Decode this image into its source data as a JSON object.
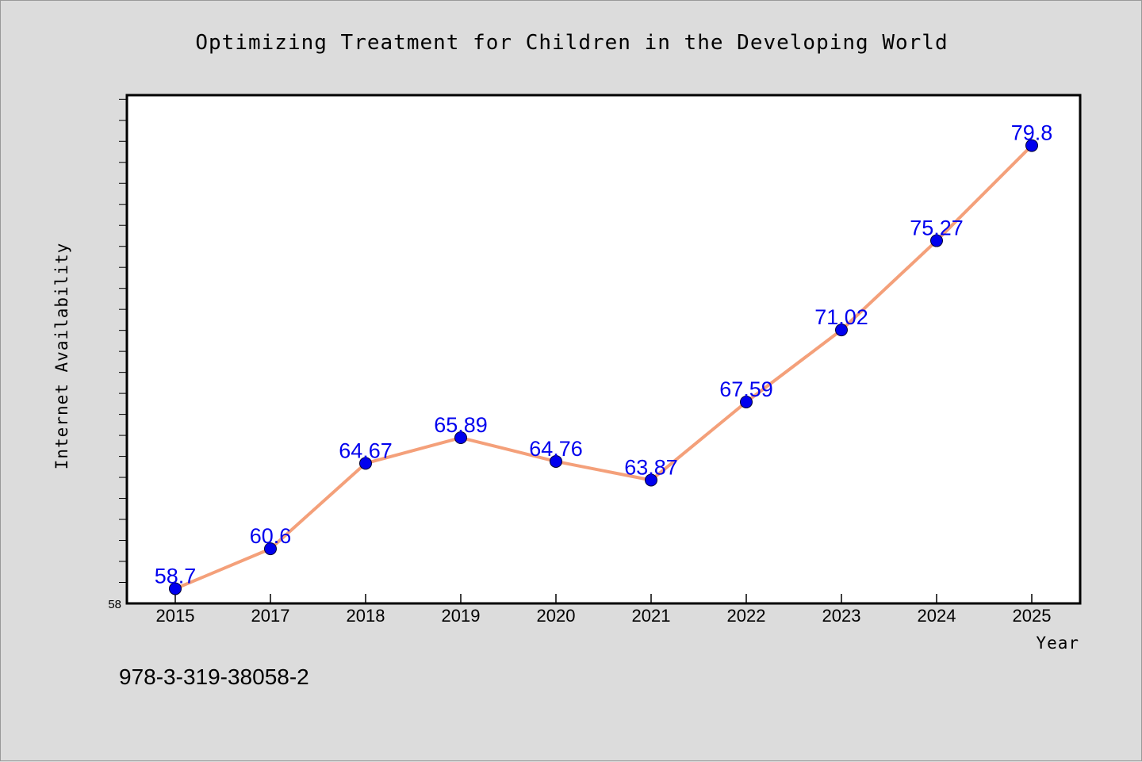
{
  "chart_data": {
    "type": "line",
    "title": "Optimizing Treatment for Children in the Developing World",
    "xlabel": "Year",
    "ylabel": "Internet Availability",
    "categories": [
      "2015",
      "2017",
      "2018",
      "2019",
      "2020",
      "2021",
      "2022",
      "2023",
      "2024",
      "2025"
    ],
    "series": [
      {
        "values": [
          58.7,
          60.6,
          64.67,
          65.89,
          64.76,
          63.87,
          67.59,
          71.02,
          75.27,
          79.8
        ]
      }
    ],
    "data_labels": [
      "58.7",
      "60.6",
      "64.67",
      "65.89",
      "64.76",
      "63.87",
      "67.59",
      "71.02",
      "75.27",
      "79.8"
    ],
    "ylim": [
      58,
      82.2
    ],
    "y_tick_label": "58",
    "grid": false,
    "legend": "none",
    "colors": {
      "line": "#f4a07a",
      "marker": "#0000ee",
      "data_label": "#0000ee",
      "plot_background": "#ffffff",
      "page_background": "#dcdcdc"
    }
  },
  "footer": {
    "isbn": "978-3-319-38058-2"
  }
}
